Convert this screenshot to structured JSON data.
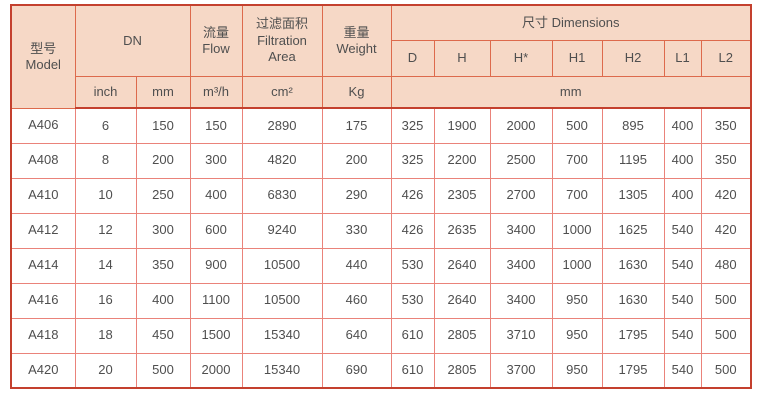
{
  "colors": {
    "header_fill": "#f6d8c6",
    "header_border": "#dd6a4c",
    "outer_border": "#c4402e",
    "data_border": "#ea837a",
    "text": "#4f4f4f",
    "page_bg": "#ffffff"
  },
  "table": {
    "header": {
      "model_zh": "型号",
      "model_en": "Model",
      "dn": "DN",
      "flow_zh": "流量",
      "flow_en": "Flow",
      "filtration_zh": "过滤面积",
      "filtration_en_line1": "Filtration",
      "filtration_en_line2": "Area",
      "weight_zh": "重量",
      "weight_en": "Weight",
      "dimensions": "尺寸 Dimensions",
      "dim_cols": [
        "D",
        "H",
        "H*",
        "H1",
        "H2",
        "L1",
        "L2"
      ],
      "unit_inch": "inch",
      "unit_mm": "mm",
      "unit_flow": "m³/h",
      "unit_area": "cm²",
      "unit_weight": "Kg",
      "unit_dims": "mm"
    },
    "column_names": [
      "model",
      "dn-inch",
      "dn-mm",
      "flow",
      "filtration-area",
      "weight",
      "dim-d",
      "dim-h",
      "dim-hstar",
      "dim-h1",
      "dim-h2",
      "dim-l1",
      "dim-l2"
    ],
    "rows": [
      [
        "A406",
        "6",
        "150",
        "150",
        "2890",
        "175",
        "325",
        "1900",
        "2000",
        "500",
        "895",
        "400",
        "350"
      ],
      [
        "A408",
        "8",
        "200",
        "300",
        "4820",
        "200",
        "325",
        "2200",
        "2500",
        "700",
        "1195",
        "400",
        "350"
      ],
      [
        "A410",
        "10",
        "250",
        "400",
        "6830",
        "290",
        "426",
        "2305",
        "2700",
        "700",
        "1305",
        "400",
        "420"
      ],
      [
        "A412",
        "12",
        "300",
        "600",
        "9240",
        "330",
        "426",
        "2635",
        "3400",
        "1000",
        "1625",
        "540",
        "420"
      ],
      [
        "A414",
        "14",
        "350",
        "900",
        "10500",
        "440",
        "530",
        "2640",
        "3400",
        "1000",
        "1630",
        "540",
        "480"
      ],
      [
        "A416",
        "16",
        "400",
        "1100",
        "10500",
        "460",
        "530",
        "2640",
        "3400",
        "950",
        "1630",
        "540",
        "500"
      ],
      [
        "A418",
        "18",
        "450",
        "1500",
        "15340",
        "640",
        "610",
        "2805",
        "3710",
        "950",
        "1795",
        "540",
        "500"
      ],
      [
        "A420",
        "20",
        "500",
        "2000",
        "15340",
        "690",
        "610",
        "2805",
        "3700",
        "950",
        "1795",
        "540",
        "500"
      ]
    ]
  }
}
